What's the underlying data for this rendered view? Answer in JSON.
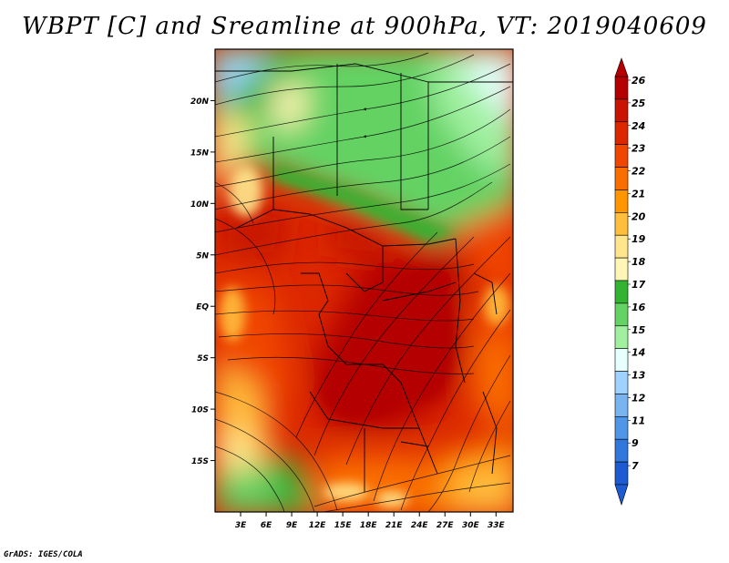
{
  "title": "WBPT [C] and Sreamline at 900hPa, VT: 2019040609",
  "credit": "GrADS: IGES/COLA",
  "map": {
    "lon_range": [
      0,
      35
    ],
    "lat_range": [
      -20,
      25
    ],
    "lon_ticks": [
      "3E",
      "6E",
      "9E",
      "12E",
      "15E",
      "18E",
      "21E",
      "24E",
      "27E",
      "30E",
      "33E"
    ],
    "lat_ticks": [
      "20N",
      "15N",
      "10N",
      "5N",
      "EQ",
      "5S",
      "10S",
      "15S"
    ]
  },
  "legend": {
    "labels": [
      "26",
      "25",
      "24",
      "23",
      "22",
      "21",
      "20",
      "19",
      "18",
      "17",
      "16",
      "15",
      "14",
      "13",
      "12",
      "11",
      "9",
      "7"
    ],
    "colors": [
      "#b40000",
      "#c81400",
      "#dc2800",
      "#f04600",
      "#fa6e00",
      "#ff9600",
      "#ffbe3c",
      "#ffe68c",
      "#fff5b4",
      "#32b432",
      "#64d264",
      "#a0f0a0",
      "#e6ffff",
      "#a0d2ff",
      "#78b4f0",
      "#5096e6",
      "#3278dc",
      "#1e5ad2"
    ]
  }
}
